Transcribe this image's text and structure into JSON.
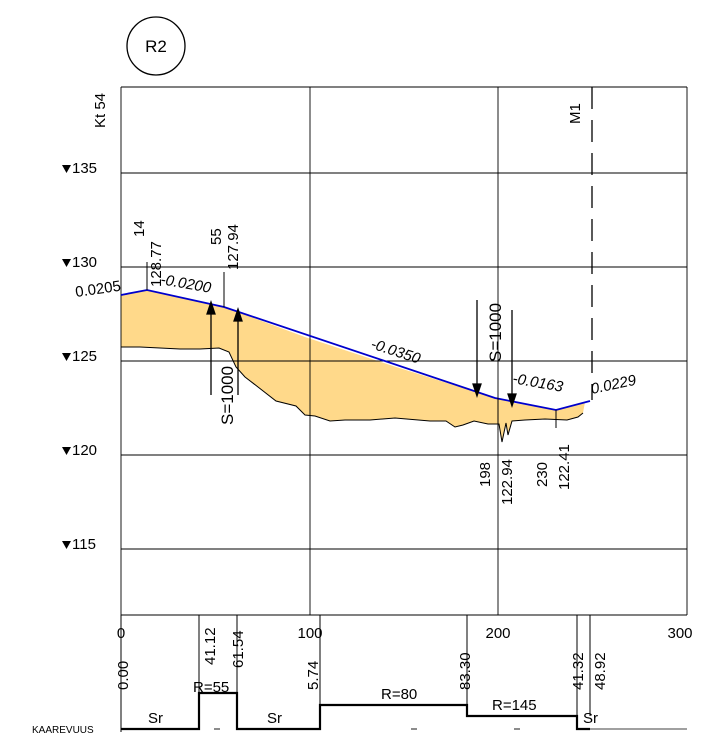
{
  "badge": "R2",
  "stations": {
    "start": "Kt 54",
    "end": "M1"
  },
  "elevation_marks": [
    "135",
    "130",
    "125",
    "120",
    "115"
  ],
  "x_ticks": [
    "0",
    "100",
    "200",
    "300"
  ],
  "grade_labels": [
    "0.0205",
    "-0.0200",
    "-0.0350",
    "-0.0163",
    "0.0229"
  ],
  "break_points": [
    {
      "station": "14",
      "elevation": "128.77"
    },
    {
      "station": "55",
      "elevation": "127.94"
    },
    {
      "station": "198",
      "elevation": "122.94"
    },
    {
      "station": "230",
      "elevation": "122.41"
    }
  ],
  "vertical_curves": [
    "S=1000",
    "S=1000"
  ],
  "curve_stations": [
    "0.00",
    "41.12",
    "61.54",
    "5.74",
    "83.30",
    "41.32",
    "48.92"
  ],
  "curvature_row": {
    "label": "KAAREVUUS",
    "segments": [
      "Sr",
      "R=55",
      "Sr",
      "R=80",
      "R=145",
      "Sr"
    ]
  },
  "colors": {
    "grade_line": "#0000cc",
    "fill": "#ffd98a",
    "grid": "#000000"
  },
  "chart_data": {
    "type": "line",
    "xlim": [
      0,
      300
    ],
    "ylim": [
      110,
      140
    ],
    "x_ticks": [
      0,
      100,
      200,
      300
    ],
    "y_ticks": [
      135,
      130,
      125,
      120,
      115
    ],
    "grid": true,
    "series": [
      {
        "x": [
          0,
          14,
          55,
          198,
          230,
          238
        ],
        "y": [
          128.48,
          128.77,
          127.94,
          122.94,
          122.41,
          122.6
        ]
      }
    ]
  }
}
